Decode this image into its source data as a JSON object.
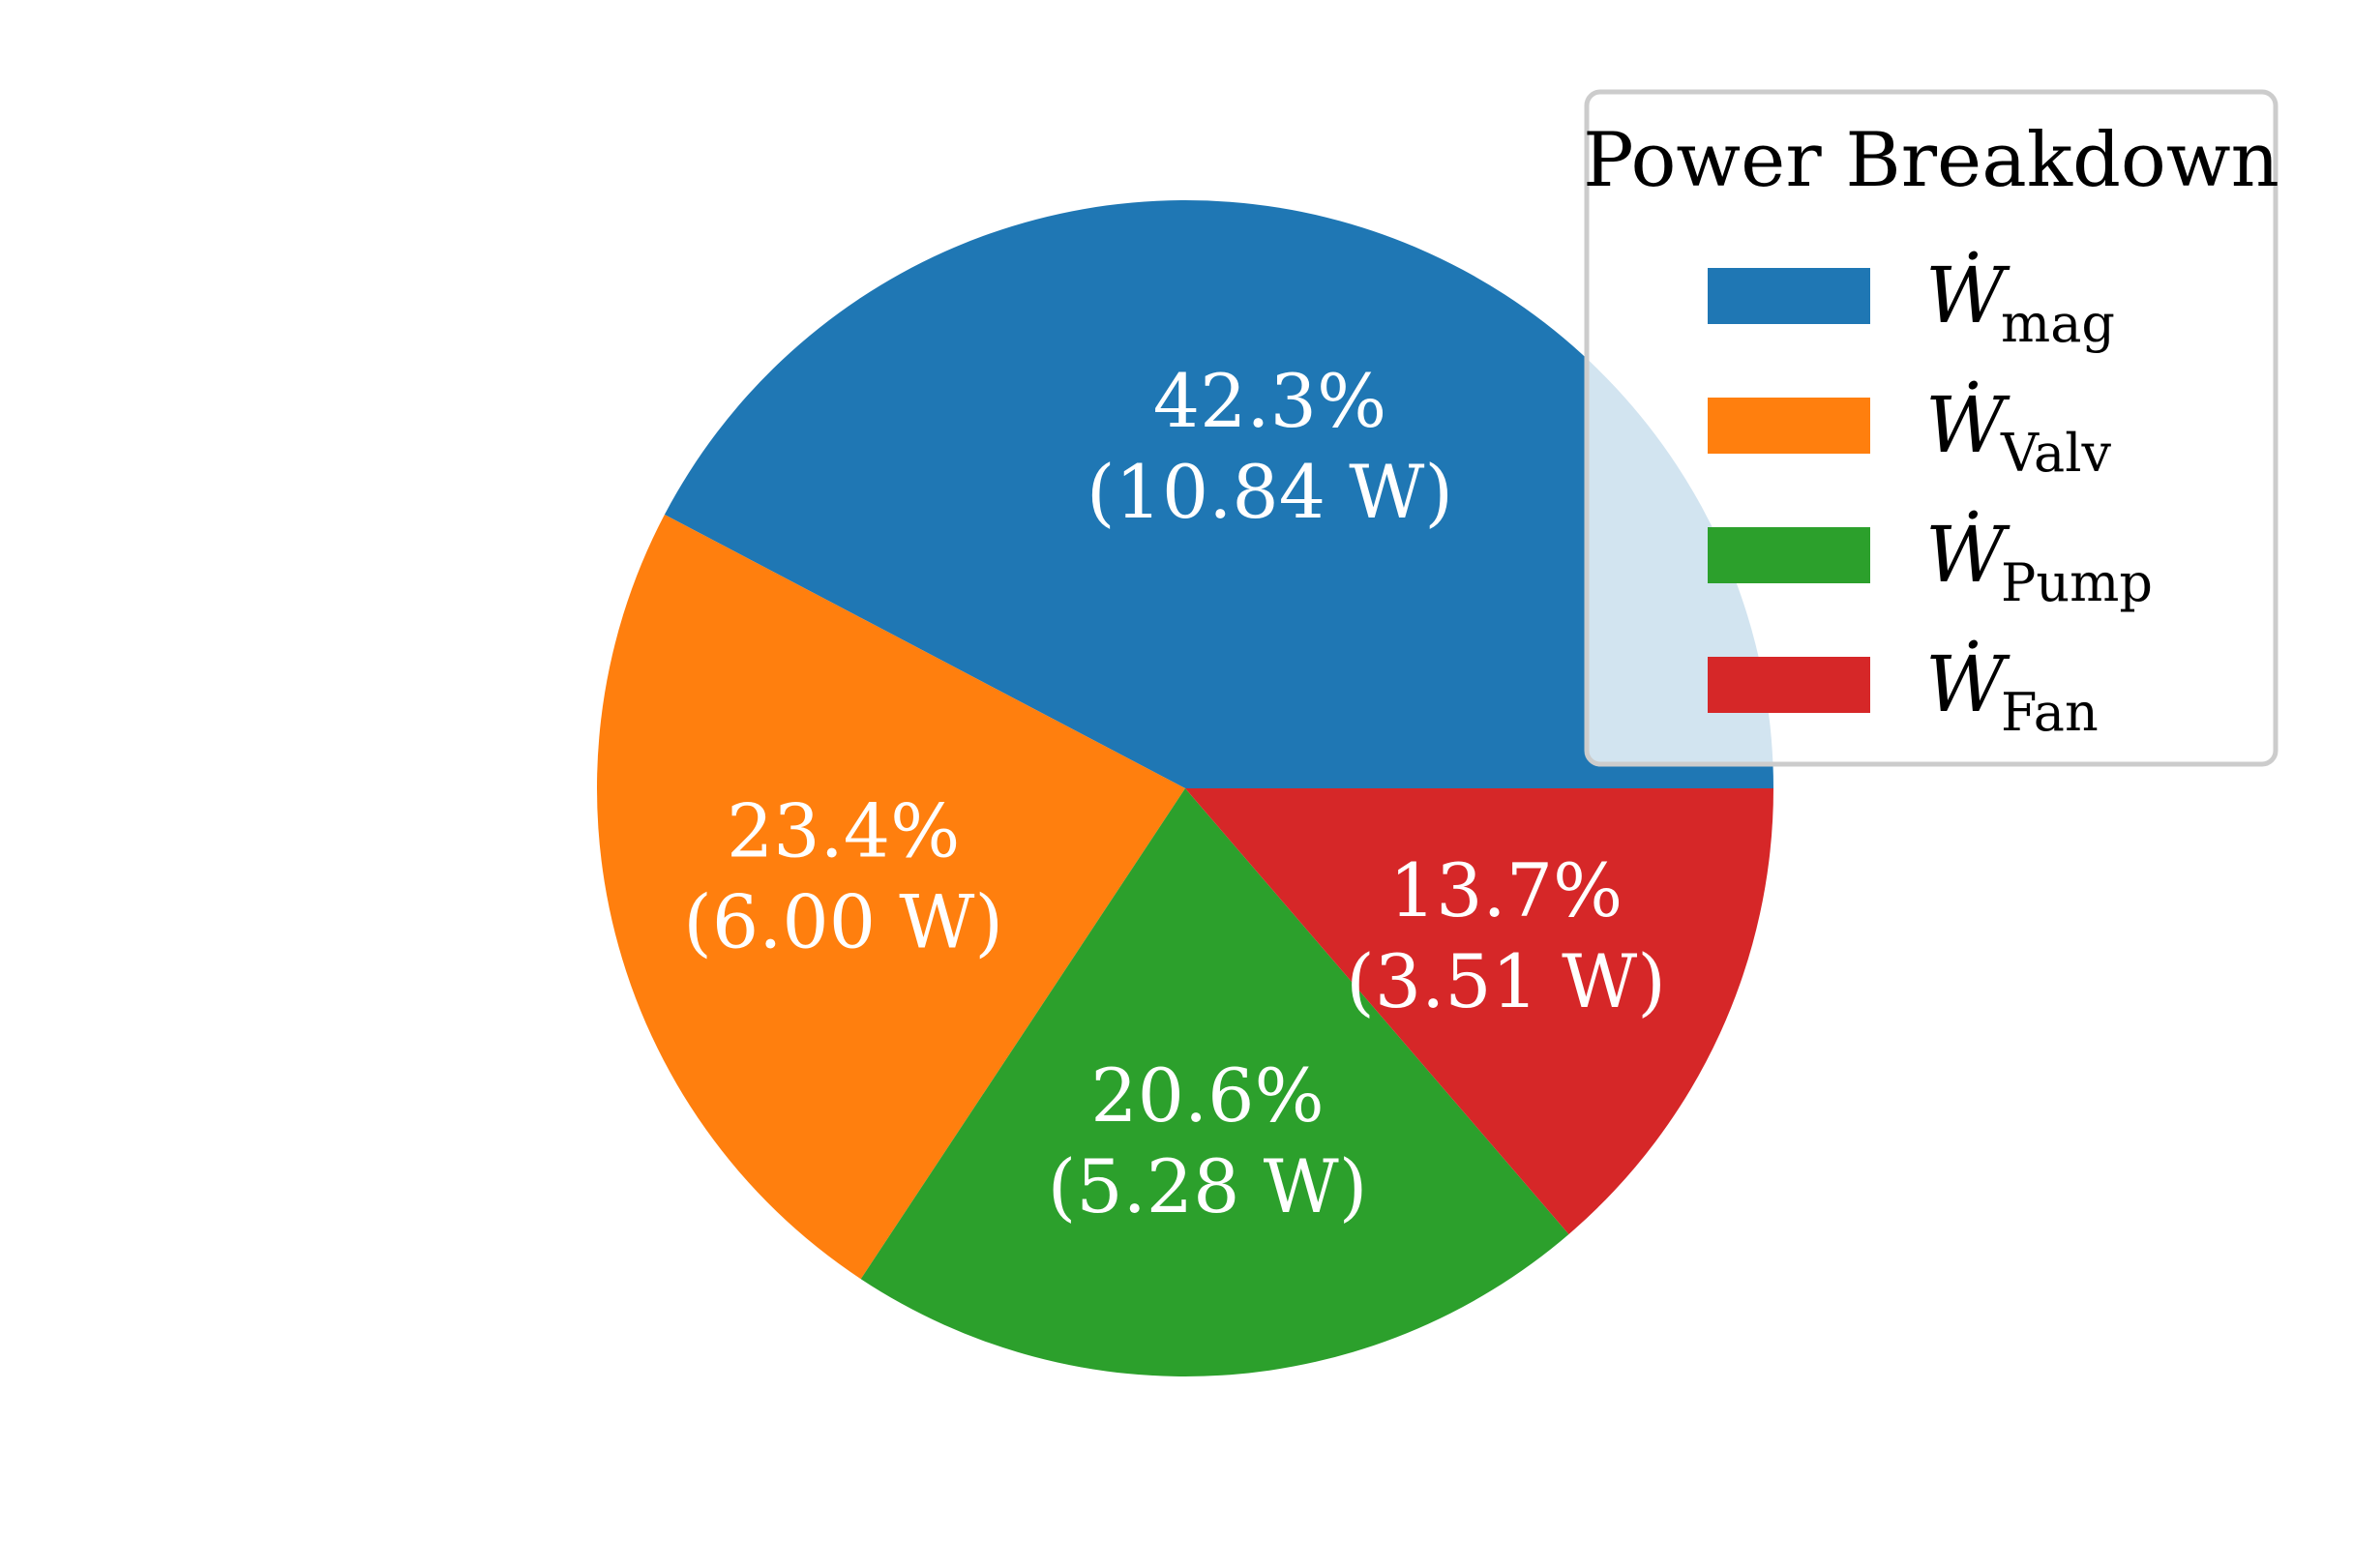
{
  "chart_data": {
    "type": "pie",
    "legend_title": "Power Breakdown",
    "legend_position": "top-right",
    "start_angle_deg": 0,
    "direction": "counterclockwise",
    "slices": [
      {
        "legend_main": "Ẇ",
        "legend_sub": "mag",
        "percent_label": "42.3%",
        "value_label": "(10.84 W)",
        "value": 10.84,
        "color": "#1f77b4"
      },
      {
        "legend_main": "Ẇ",
        "legend_sub": "Valv",
        "percent_label": "23.4%",
        "value_label": "(6.00 W)",
        "value": 6.0,
        "color": "#ff7f0e"
      },
      {
        "legend_main": "Ẇ",
        "legend_sub": "Pump",
        "percent_label": "20.6%",
        "value_label": "(5.28 W)",
        "value": 5.28,
        "color": "#2ca02c"
      },
      {
        "legend_main": "Ẇ",
        "legend_sub": "Fan",
        "percent_label": "13.7%",
        "value_label": "(3.51 W)",
        "value": 3.51,
        "color": "#d62728"
      }
    ]
  }
}
